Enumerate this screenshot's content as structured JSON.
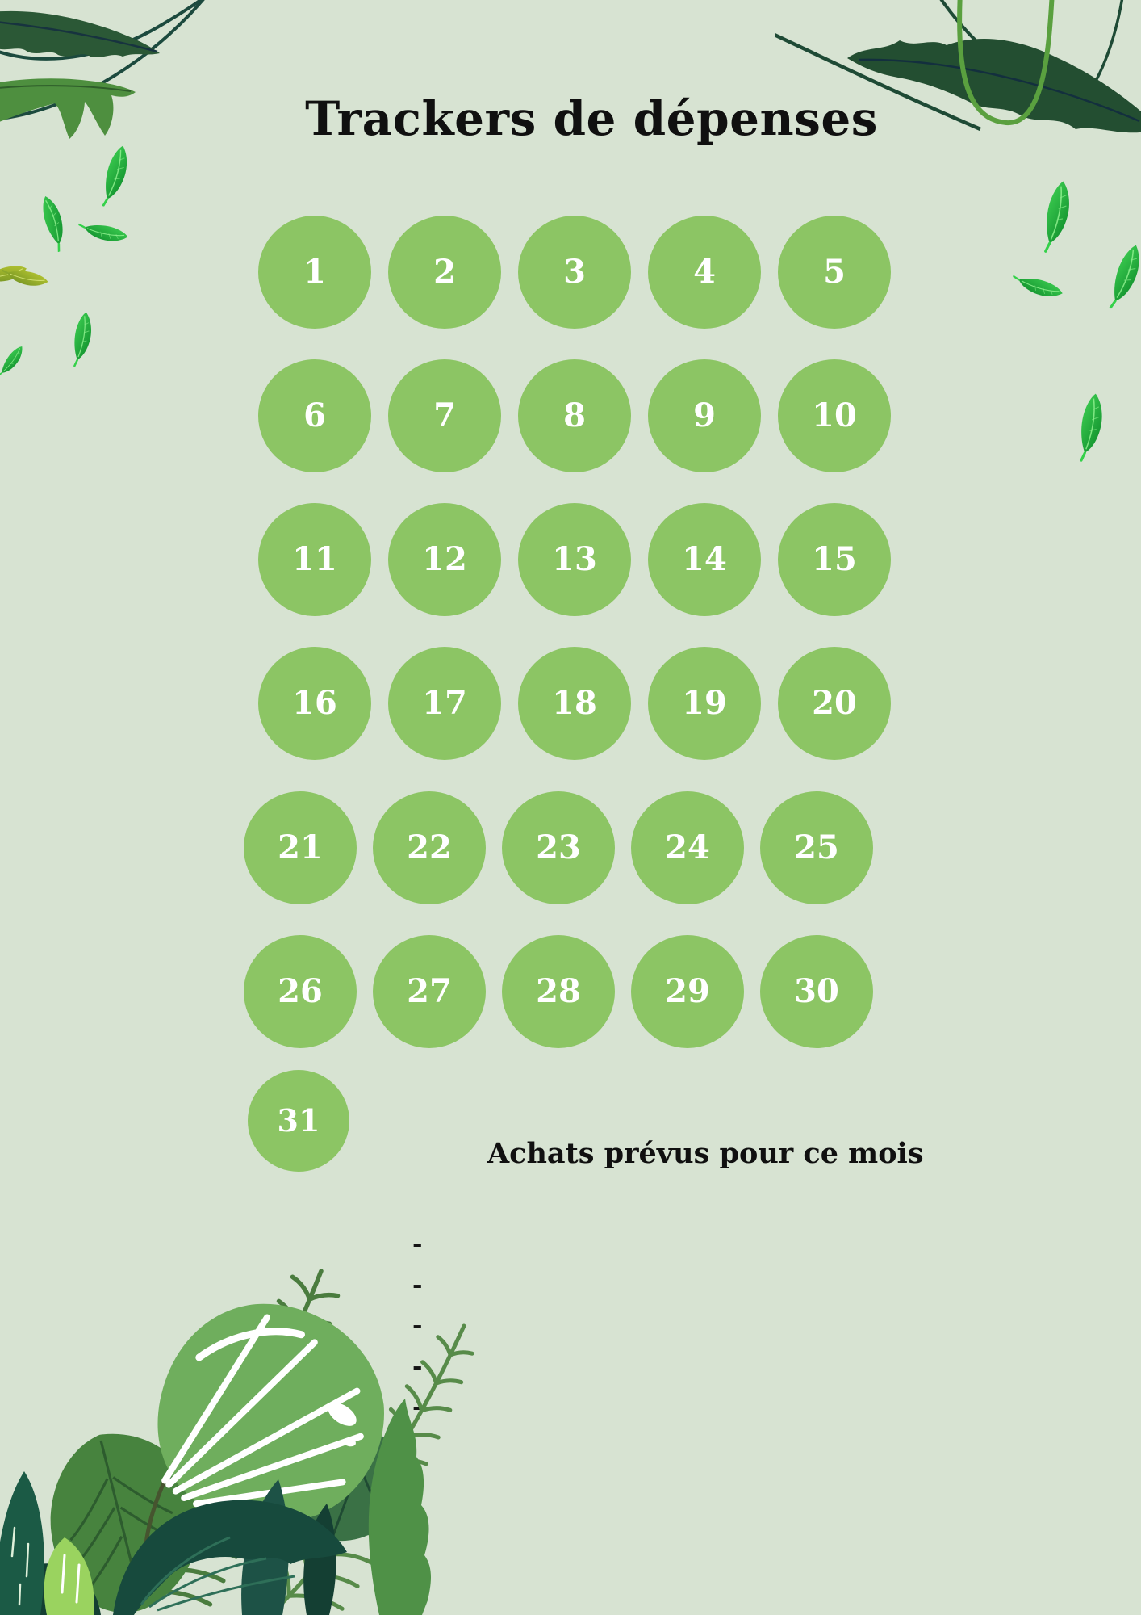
{
  "page": {
    "title": "Trackers de dépenses"
  },
  "calendar": {
    "days": [
      "1",
      "2",
      "3",
      "4",
      "5",
      "6",
      "7",
      "8",
      "9",
      "10",
      "11",
      "12",
      "13",
      "14",
      "15",
      "16",
      "17",
      "18",
      "19",
      "20",
      "21",
      "22",
      "23",
      "24",
      "25",
      "26",
      "27",
      "28",
      "29",
      "30",
      "31"
    ]
  },
  "planned_purchases": {
    "heading": "Achats prévus pour ce mois",
    "items": [
      "-",
      "-",
      "-",
      "-",
      "-"
    ]
  },
  "colors": {
    "background": "#d7e3d2",
    "circle": "#8cc564",
    "circle_text": "#ffffff",
    "heading": "#101010",
    "leaf_dark": "#234e31",
    "leaf_medium": "#4e8f3f",
    "leaf_bright_light": "#3ecf52",
    "leaf_bright_deep": "#0e8c2b",
    "leaf_olive": "#a8b535",
    "vine_dark": "#1e4a35",
    "vine_light": "#5aa03f",
    "fern": "#4a7c3e",
    "monstera_light": "#6fae5d",
    "monstera_mid": "#47833e",
    "foliage_teal": "#174a3d",
    "bright_blob_leaf": "#9ad35f"
  },
  "decorations": {
    "top_left": [
      "vine-icon",
      "arugula-leaf-dark-icon",
      "arugula-leaf-medium-icon"
    ],
    "top_right": [
      "vine-icon",
      "hanging-vine-icon",
      "arugula-leaf-dark-icon"
    ],
    "falling_leaves": 11,
    "bottom_left": [
      "fern-frond-icon",
      "monstera-leaf-light-icon",
      "monstera-leaf-mid-icon",
      "monstera-leaf-small-icon",
      "tropical-leaves-teal-icon",
      "bright-leaf-icon",
      "jagged-leaf-icon"
    ]
  }
}
